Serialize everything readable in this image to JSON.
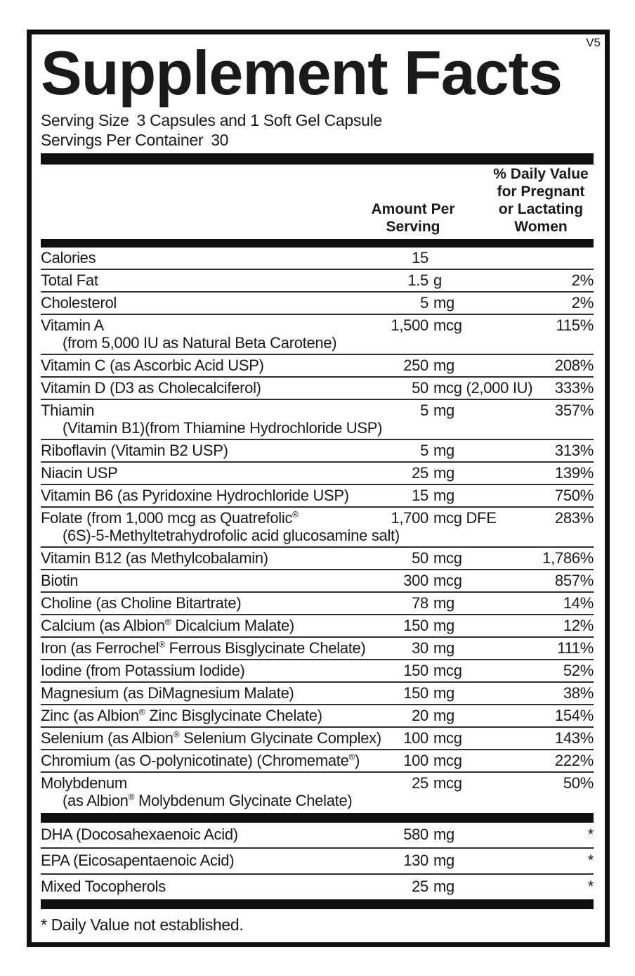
{
  "version": "V5",
  "title": "Supplement Facts",
  "serving": {
    "size_label": "Serving Size",
    "size_value": "3 Capsules and 1 Soft Gel Capsule",
    "per_container_label": "Servings Per Container",
    "per_container_value": "30"
  },
  "columns": {
    "amount_header": "Amount Per\nServing",
    "dv_header": "% Daily Value\nfor Pregnant\nor Lactating\nWomen"
  },
  "main_rows": [
    {
      "name": "Calories",
      "amount": "15",
      "dv": ""
    },
    {
      "name": "Total Fat",
      "amount": "1.5 g",
      "dv": "2%"
    },
    {
      "name": "Cholesterol",
      "amount": "5 mg",
      "dv": "2%"
    },
    {
      "name": "Vitamin A",
      "name2": "(from 5,000 IU as Natural Beta Carotene)",
      "amount": "1,500 mcg",
      "dv": "115%"
    },
    {
      "name": "Vitamin C (as Ascorbic Acid USP)",
      "amount": "250 mg",
      "dv": "208%"
    },
    {
      "name": "Vitamin D (D3 as Cholecalciferol)",
      "amount": "50 mcg (2,000 IU)",
      "dv": "333%"
    },
    {
      "name": "Thiamin",
      "name2": "(Vitamin B1)(from Thiamine Hydrochloride USP)",
      "amount": "5 mg",
      "dv": "357%"
    },
    {
      "name": "Riboflavin (Vitamin B2 USP)",
      "amount": "5 mg",
      "dv": "313%"
    },
    {
      "name": "Niacin USP",
      "amount": "25 mg",
      "dv": "139%"
    },
    {
      "name": "Vitamin B6 (as Pyridoxine Hydrochloride USP)",
      "amount": "15 mg",
      "dv": "750%"
    },
    {
      "name": "Folate (from 1,000 mcg as Quatrefolic®",
      "name2": "(6S)-5-Methyltetrahydrofolic acid glucosamine salt)",
      "amount": "1,700 mcg DFE",
      "dv": "283%"
    },
    {
      "name": "Vitamin B12 (as Methylcobalamin)",
      "amount": "50 mcg",
      "dv": "1,786%"
    },
    {
      "name": "Biotin",
      "amount": "300 mcg",
      "dv": "857%"
    },
    {
      "name": "Choline (as Choline Bitartrate)",
      "amount": "78 mg",
      "dv": "14%"
    },
    {
      "name": "Calcium (as Albion® Dicalcium Malate)",
      "amount": "150 mg",
      "dv": "12%"
    },
    {
      "name": "Iron (as Ferrochel® Ferrous Bisglycinate Chelate)",
      "amount": "30 mg",
      "dv": "111%"
    },
    {
      "name": "Iodine (from Potassium Iodide)",
      "amount": "150 mcg",
      "dv": "52%"
    },
    {
      "name": "Magnesium (as DiMagnesium Malate)",
      "amount": "150 mg",
      "dv": "38%"
    },
    {
      "name": "Zinc (as Albion® Zinc Bisglycinate Chelate)",
      "amount": "20 mg",
      "dv": "154%"
    },
    {
      "name": "Selenium (as Albion® Selenium Glycinate Complex)",
      "amount": "100 mcg",
      "dv": "143%"
    },
    {
      "name": "Chromium (as O-polynicotinate) (Chromemate®)",
      "amount": "100 mcg",
      "dv": "222%"
    },
    {
      "name": "Molybdenum",
      "name2": "(as Albion® Molybdenum Glycinate Chelate)",
      "amount": "25 mcg",
      "dv": "50%"
    }
  ],
  "other_rows": [
    {
      "name": "DHA (Docosahexaenoic Acid)",
      "amount": "580 mg",
      "dv": "*"
    },
    {
      "name": "EPA (Eicosapentaenoic Acid)",
      "amount": "130 mg",
      "dv": "*"
    },
    {
      "name": "Mixed Tocopherols",
      "amount": "25 mg",
      "dv": "*"
    }
  ],
  "footnote": "* Daily Value not established.",
  "colors": {
    "background": "#ffffff",
    "ink": "#1a1a1a",
    "bar": "#101010",
    "hairline": "#303030"
  }
}
